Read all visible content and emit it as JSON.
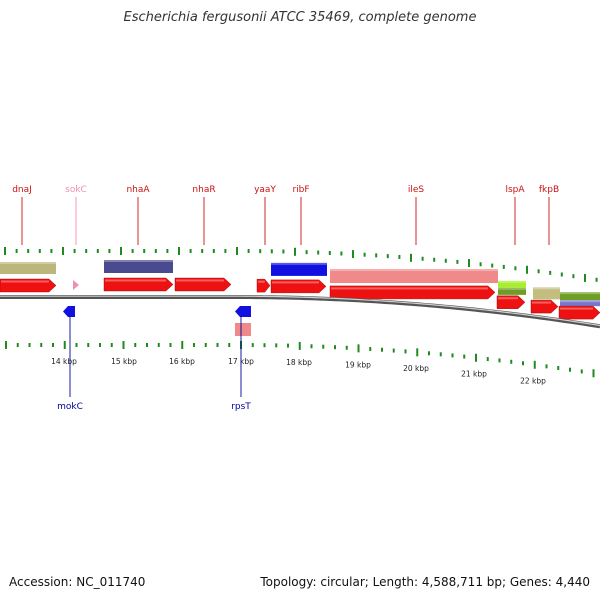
{
  "title": "Escherichia fergusonii ATCC 35469, complete genome",
  "accession": "Accession: NC_011740",
  "summary": "Topology: circular; Length: 4,588,711 bp; Genes: 4,440",
  "colors": {
    "cds": "#ee1111",
    "label_top": "#cc1111",
    "label_bottom": "#000099",
    "tick": "#1f8a1f",
    "backbone": "#8c8c8c"
  },
  "scale_labels": [
    "14 kbp",
    "15 kbp",
    "16 kbp",
    "17 kbp",
    "18 kbp",
    "19 kbp",
    "20 kbp",
    "21 kbp",
    "22 kbp"
  ],
  "top_labels": [
    {
      "text": "dnaJ",
      "color": "#cc1111"
    },
    {
      "text": "sokC",
      "color": "#f090b0"
    },
    {
      "text": "nhaA",
      "color": "#cc1111"
    },
    {
      "text": "nhaR",
      "color": "#cc1111"
    },
    {
      "text": "yaaY",
      "color": "#cc1111"
    },
    {
      "text": "ribF",
      "color": "#cc1111"
    },
    {
      "text": "ileS",
      "color": "#cc1111"
    },
    {
      "text": "lspA",
      "color": "#cc1111"
    },
    {
      "text": "fkpB",
      "color": "#cc1111"
    }
  ],
  "bottom_labels": [
    {
      "text": "mokC",
      "color": "#000099"
    },
    {
      "text": "rpsT",
      "color": "#000099"
    }
  ]
}
